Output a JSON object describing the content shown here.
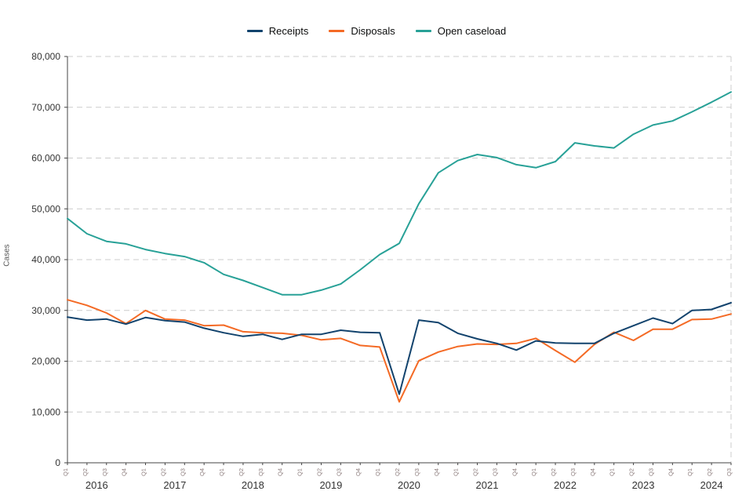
{
  "chart_data": {
    "type": "line",
    "title": "",
    "ylabel": "Cases",
    "ylim": [
      0,
      80000
    ],
    "yticks": [
      0,
      10000,
      20000,
      30000,
      40000,
      50000,
      60000,
      70000,
      80000
    ],
    "grid": "dashed-horizontal",
    "legend_position": "top-center",
    "quarters": [
      "Q1",
      "Q2",
      "Q3",
      "Q4",
      "Q1",
      "Q2",
      "Q3",
      "Q4",
      "Q1",
      "Q2",
      "Q3",
      "Q4",
      "Q1",
      "Q2",
      "Q3",
      "Q4",
      "Q1",
      "Q2",
      "Q3",
      "Q4",
      "Q1",
      "Q2",
      "Q3",
      "Q4",
      "Q1",
      "Q2",
      "Q3",
      "Q4",
      "Q1",
      "Q2",
      "Q3",
      "Q4",
      "Q1",
      "Q2",
      "Q3"
    ],
    "years": [
      {
        "label": "2016",
        "span": 4
      },
      {
        "label": "2017",
        "span": 4
      },
      {
        "label": "2018",
        "span": 4
      },
      {
        "label": "2019",
        "span": 4
      },
      {
        "label": "2020",
        "span": 4
      },
      {
        "label": "2021",
        "span": 4
      },
      {
        "label": "2022",
        "span": 4
      },
      {
        "label": "2023",
        "span": 4
      },
      {
        "label": "2024",
        "span": 3
      }
    ],
    "series": [
      {
        "name": "Open caseload",
        "color": "#28A197",
        "values": [
          48100,
          45100,
          43600,
          43100,
          42000,
          41200,
          40600,
          39400,
          37100,
          35900,
          34500,
          33100,
          33100,
          34000,
          35200,
          38000,
          41000,
          43200,
          51000,
          57100,
          59500,
          60700,
          60100,
          58700,
          58100,
          59300,
          63000,
          62400,
          62000,
          64700,
          66500,
          67300,
          69100,
          71000,
          73000
        ]
      },
      {
        "name": "Disposals",
        "color": "#F46A25",
        "values": [
          32100,
          31000,
          29500,
          27400,
          30000,
          28300,
          28100,
          27000,
          27100,
          25800,
          25600,
          25500,
          25100,
          24200,
          24500,
          23100,
          22800,
          12000,
          20100,
          21800,
          22900,
          23400,
          23300,
          23500,
          24500,
          22100,
          19800,
          23300,
          25700,
          24100,
          26300,
          26300,
          28200,
          28300,
          29300
        ]
      },
      {
        "name": "Receipts",
        "color": "#12436D",
        "values": [
          28700,
          28100,
          28300,
          27300,
          28600,
          28000,
          27700,
          26500,
          25600,
          24900,
          25300,
          24300,
          25300,
          25300,
          26100,
          25700,
          25600,
          13500,
          28100,
          27600,
          25500,
          24400,
          23500,
          22200,
          24000,
          23600,
          23500,
          23500,
          25500,
          27000,
          28500,
          27400,
          30000,
          30200,
          31500
        ]
      }
    ],
    "legend_order": [
      "Receipts",
      "Disposals",
      "Open caseload"
    ],
    "axis_color": "#444444",
    "grid_color": "#cccccc",
    "tick_label_color": "#333333",
    "quarter_label_color": "#8a7a7a"
  }
}
